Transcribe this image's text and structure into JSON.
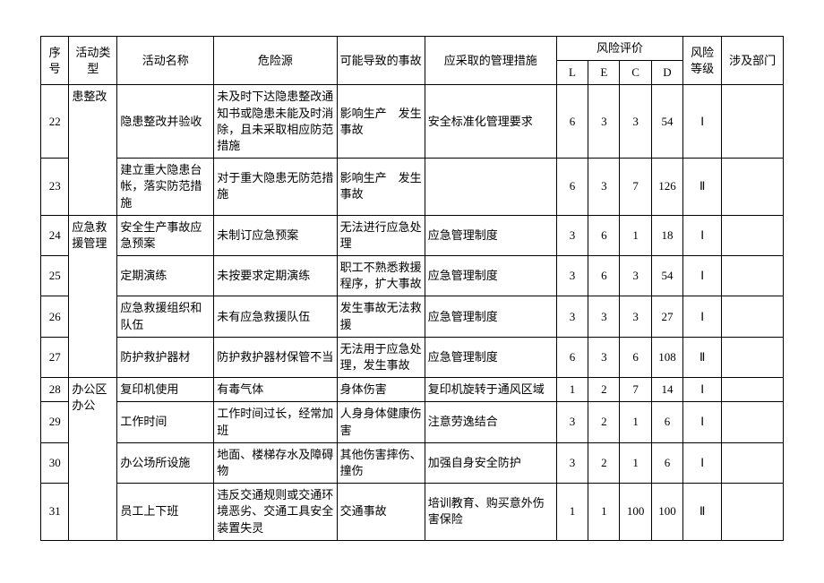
{
  "headers": {
    "seq": "序号",
    "type": "活动类型",
    "name": "活动名称",
    "source": "危险源",
    "accident": "可能导致的事故",
    "measure": "应采取的管理措施",
    "risk_group": "风险评价",
    "L": "L",
    "E": "E",
    "C": "C",
    "D": "D",
    "level": "风险等级",
    "dept": "涉及部门"
  },
  "groups": [
    {
      "type": "患整改",
      "rows": [
        {
          "seq": "22",
          "name": "隐患整改并验收",
          "source": "未及时下达隐患整改通知书或隐患未能及时消除，且未采取相应防范措施",
          "accident": "影响生产　发生事故",
          "measure": "安全标准化管理要求",
          "L": "6",
          "E": "3",
          "C": "3",
          "D": "54",
          "level": "Ⅰ"
        },
        {
          "seq": "23",
          "name": "建立重大隐患台帐，落实防范措施",
          "source": "对于重大隐患无防范措施",
          "accident": "影响生产　发生事故",
          "measure": "",
          "L": "6",
          "E": "3",
          "C": "7",
          "D": "126",
          "level": "Ⅱ"
        }
      ]
    },
    {
      "type": "应急救援管理",
      "rows": [
        {
          "seq": "24",
          "name": "安全生产事故应急预案",
          "source": "未制订应急预案",
          "accident": "无法进行应急处理",
          "measure": "应急管理制度",
          "L": "3",
          "E": "6",
          "C": "1",
          "D": "18",
          "level": "Ⅰ"
        },
        {
          "seq": "25",
          "name": "定期演练",
          "source": "未按要求定期演练",
          "accident": "职工不熟悉救援程序，扩大事故",
          "measure": "应急管理制度",
          "L": "3",
          "E": "6",
          "C": "3",
          "D": "54",
          "level": "Ⅰ"
        },
        {
          "seq": "26",
          "name": "应急救援组织和队伍",
          "source": "未有应急救援队伍",
          "accident": "发生事故无法救援",
          "measure": "应急管理制度",
          "L": "3",
          "E": "3",
          "C": "3",
          "D": "27",
          "level": "Ⅰ"
        },
        {
          "seq": "27",
          "name": "防护救护器材",
          "source": "防护救护器材保管不当",
          "accident": "无法用于应急处理，发生事故",
          "measure": "应急管理制度",
          "L": "6",
          "E": "3",
          "C": "6",
          "D": "108",
          "level": "Ⅱ"
        }
      ]
    },
    {
      "type": "办公区办公",
      "rows": [
        {
          "seq": "28",
          "name": "复印机使用",
          "source": "有毒气体",
          "accident": "身体伤害",
          "measure": "复印机旋转于通风区域",
          "L": "1",
          "E": "2",
          "C": "7",
          "D": "14",
          "level": "Ⅰ"
        },
        {
          "seq": "29",
          "name": "工作时间",
          "source": "工作时间过长，经常加班",
          "accident": "人身身体健康伤害",
          "measure": "注意劳逸结合",
          "L": "3",
          "E": "2",
          "C": "1",
          "D": "6",
          "level": "Ⅰ"
        },
        {
          "seq": "30",
          "name": "办公场所设施",
          "source": "地面、楼梯存水及障碍物",
          "accident": "其他伤害摔伤、撞伤",
          "measure": "加强自身安全防护",
          "L": "3",
          "E": "2",
          "C": "1",
          "D": "6",
          "level": "Ⅰ"
        },
        {
          "seq": "31",
          "name": "员工上下班",
          "source": "违反交通规则或交通环境恶劣、交通工具安全装置失灵",
          "accident": "交通事故",
          "measure": "培训教育、购买意外伤害保险",
          "L": "1",
          "E": "1",
          "C": "100",
          "D": "100",
          "level": "Ⅱ"
        }
      ]
    }
  ]
}
